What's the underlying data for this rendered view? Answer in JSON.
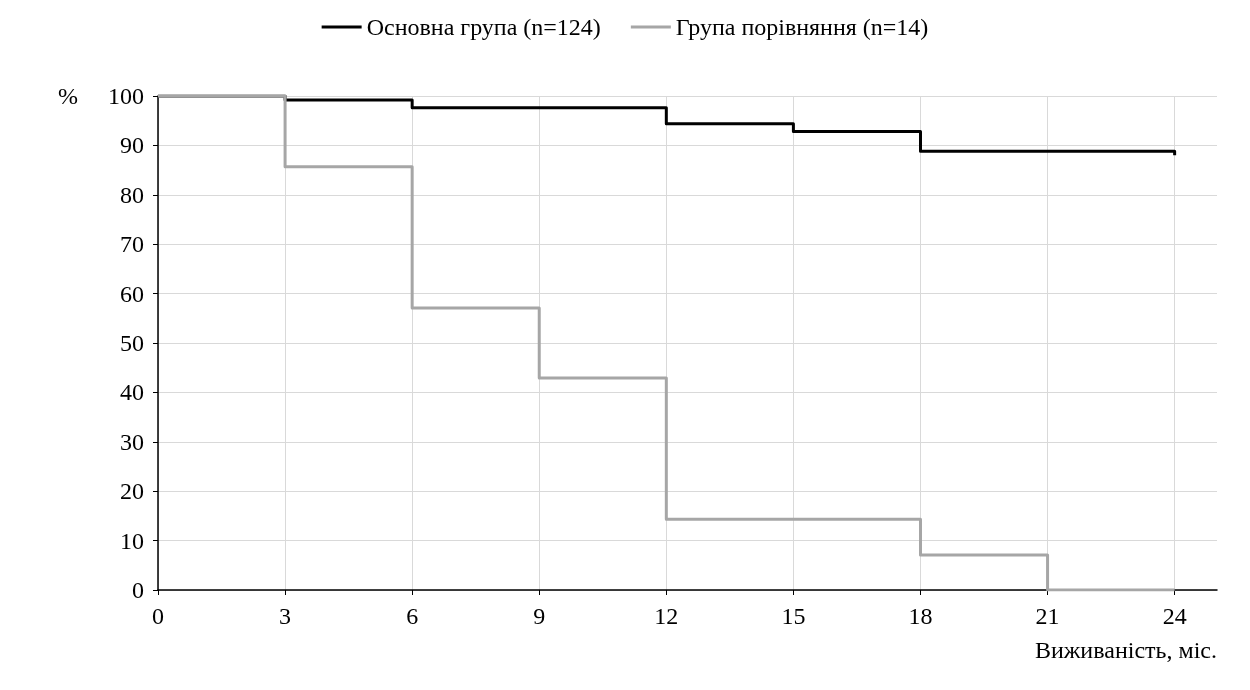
{
  "chart_data": {
    "type": "step",
    "xlabel": "Виживаність, міс.",
    "ylabel": "%",
    "series": [
      {
        "name": "Основна група (n=124)",
        "color": "#000000",
        "x": [
          0,
          3,
          6,
          12,
          15,
          18,
          24,
          24
        ],
        "values": [
          100,
          99.2,
          97.6,
          94.4,
          92.8,
          88.8,
          88.8,
          88
        ]
      },
      {
        "name": "Група порівняння (n=14)",
        "color": "#a6a6a6",
        "x": [
          0,
          3,
          6,
          9,
          12,
          18,
          21,
          24
        ],
        "values": [
          100,
          85.7,
          57.1,
          42.9,
          14.3,
          7.1,
          0,
          0
        ]
      }
    ],
    "xlim": [
      0,
      25
    ],
    "xticks": [
      0,
      3,
      6,
      9,
      12,
      15,
      18,
      21,
      24
    ],
    "ylim": [
      0,
      100
    ],
    "yticks": [
      0,
      10,
      20,
      30,
      40,
      50,
      60,
      70,
      80,
      90,
      100
    ],
    "grid": true,
    "legend": "top",
    "marker": "none",
    "line_style": "solid"
  }
}
